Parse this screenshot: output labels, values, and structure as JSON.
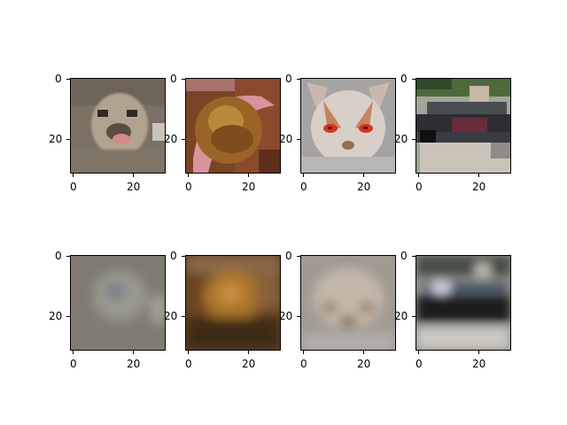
{
  "figure": {
    "panels": [
      {
        "id": "top-1",
        "row": 0,
        "col": 0,
        "content": "pixelated dog face (original)"
      },
      {
        "id": "top-2",
        "row": 0,
        "col": 1,
        "content": "pixelated brown object (original)"
      },
      {
        "id": "top-3",
        "row": 0,
        "col": 2,
        "content": "pixelated white cat with red eyes (original)"
      },
      {
        "id": "top-4",
        "row": 0,
        "col": 3,
        "content": "pixelated car scene (original)"
      },
      {
        "id": "bottom-1",
        "row": 1,
        "col": 0,
        "content": "blurry reconstruction of dog"
      },
      {
        "id": "bottom-2",
        "row": 1,
        "col": 1,
        "content": "blurry reconstruction of brown object"
      },
      {
        "id": "bottom-3",
        "row": 1,
        "col": 2,
        "content": "blurry reconstruction of cat"
      },
      {
        "id": "bottom-4",
        "row": 1,
        "col": 3,
        "content": "blurry reconstruction of car"
      }
    ],
    "y_ticks": [
      "0",
      "20"
    ],
    "x_ticks": [
      "0",
      "20"
    ],
    "colors": {
      "frame": "#000000",
      "background": "#ffffff"
    }
  }
}
